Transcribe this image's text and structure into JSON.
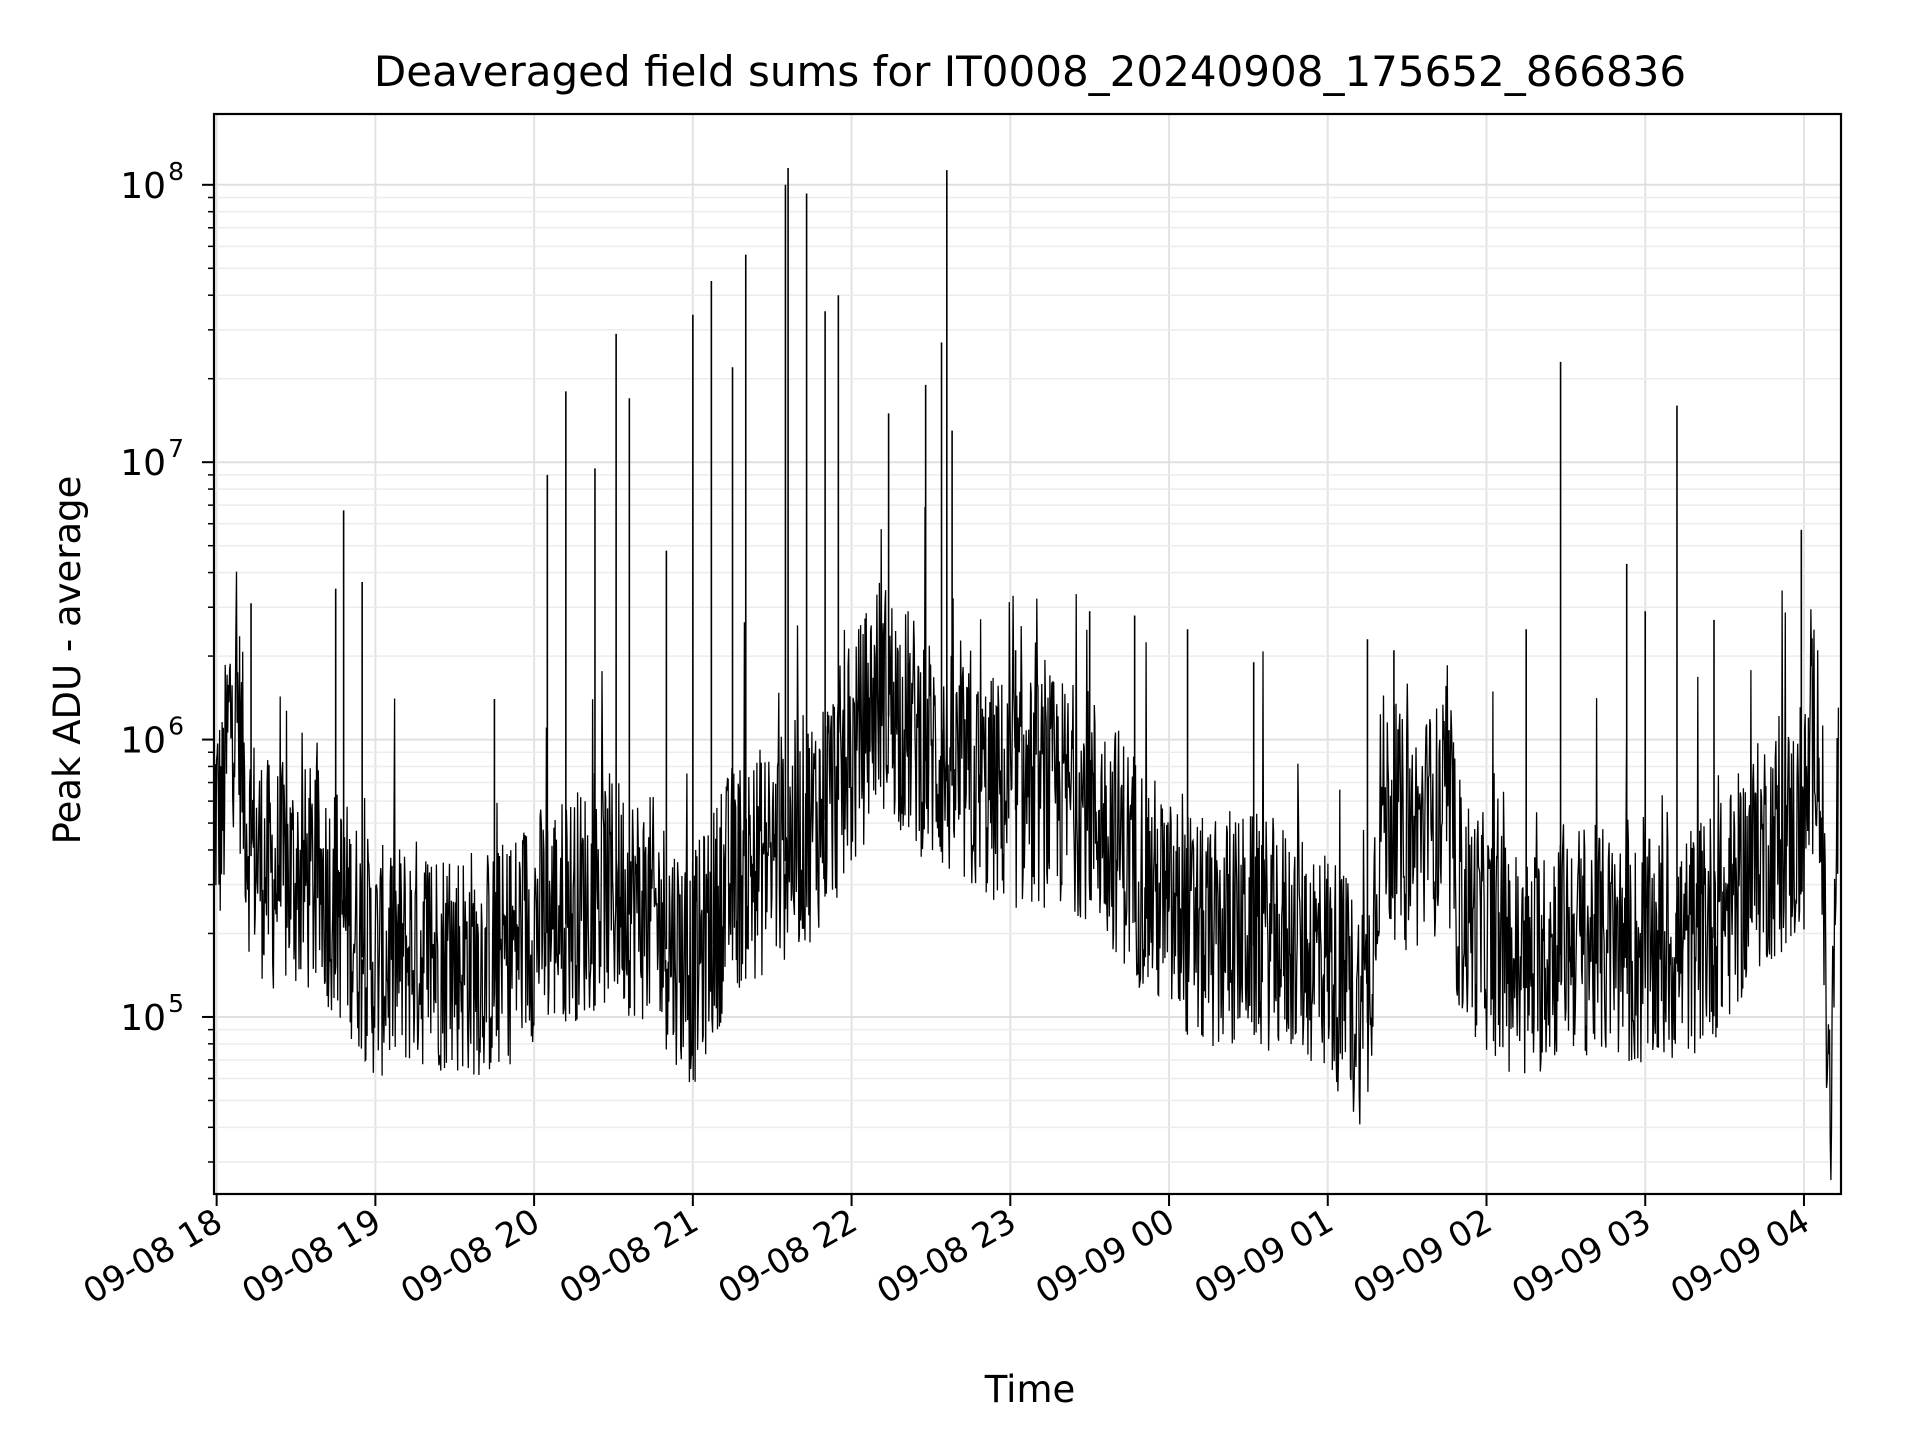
{
  "chart_data": {
    "type": "line",
    "title": "Deaveraged field sums for IT0008_20240908_175652_866836",
    "xlabel": "Time",
    "ylabel": "Peak ADU - average",
    "yscale": "log",
    "ylim": [
      23000,
      180000000
    ],
    "xlim": [
      "2024-09-08 17:59:00",
      "2024-09-09 04:14:00"
    ],
    "xticks": [
      "2024-09-08 18:00",
      "2024-09-08 19:00",
      "2024-09-08 20:00",
      "2024-09-08 21:00",
      "2024-09-08 22:00",
      "2024-09-08 23:00",
      "2024-09-09 00:00",
      "2024-09-09 01:00",
      "2024-09-09 02:00",
      "2024-09-09 03:00",
      "2024-09-09 04:00"
    ],
    "xtick_labels": [
      "09-08 18",
      "09-08 19",
      "09-08 20",
      "09-08 21",
      "09-08 22",
      "09-08 23",
      "09-09 00",
      "09-09 01",
      "09-09 02",
      "09-09 03",
      "09-09 04"
    ],
    "ytick_values": [
      100000,
      1000000,
      10000000,
      100000000
    ],
    "ytick_labels": [
      {
        "base": "10",
        "exp": "5"
      },
      {
        "base": "10",
        "exp": "6"
      },
      {
        "base": "10",
        "exp": "7"
      },
      {
        "base": "10",
        "exp": "8"
      }
    ],
    "grid": true,
    "line_color": "#000000",
    "series": [
      {
        "x": [
          "2024-09-08 17:59",
          "2024-09-08 18:02",
          "2024-09-08 18:05",
          "2024-09-08 18:08",
          "2024-09-08 18:12",
          "2024-09-08 18:20",
          "2024-09-08 18:30",
          "2024-09-08 18:40",
          "2024-09-08 18:50",
          "2024-09-08 19:00",
          "2024-09-08 19:15",
          "2024-09-08 19:30",
          "2024-09-08 19:45",
          "2024-09-08 20:00",
          "2024-09-08 20:15",
          "2024-09-08 20:30",
          "2024-09-08 20:45",
          "2024-09-08 21:00",
          "2024-09-08 21:15",
          "2024-09-08 21:30",
          "2024-09-08 21:45",
          "2024-09-08 22:00",
          "2024-09-08 22:10",
          "2024-09-08 22:20",
          "2024-09-08 22:30",
          "2024-09-08 22:45",
          "2024-09-08 23:00",
          "2024-09-08 23:15",
          "2024-09-08 23:30",
          "2024-09-08 23:45",
          "2024-09-09 00:00",
          "2024-09-09 00:15",
          "2024-09-09 00:30",
          "2024-09-09 00:45",
          "2024-09-09 01:00",
          "2024-09-09 01:10",
          "2024-09-09 01:15",
          "2024-09-09 01:20",
          "2024-09-09 01:30",
          "2024-09-09 01:45",
          "2024-09-09 01:50",
          "2024-09-09 02:00",
          "2024-09-09 02:15",
          "2024-09-09 02:30",
          "2024-09-09 02:45",
          "2024-09-09 03:00",
          "2024-09-09 03:15",
          "2024-09-09 03:30",
          "2024-09-09 03:45",
          "2024-09-09 04:00",
          "2024-09-09 04:05",
          "2024-09-09 04:10",
          "2024-09-09 04:13"
        ],
        "y": [
          650000,
          550000,
          1400000,
          1400000,
          500000,
          350000,
          350000,
          330000,
          250000,
          170000,
          190000,
          180000,
          170000,
          240000,
          280000,
          320000,
          260000,
          160000,
          350000,
          420000,
          550000,
          900000,
          1700000,
          1300000,
          1000000,
          750000,
          700000,
          720000,
          650000,
          420000,
          260000,
          210000,
          230000,
          210000,
          180000,
          120000,
          120000,
          650000,
          480000,
          600000,
          280000,
          220000,
          160000,
          220000,
          200000,
          180000,
          200000,
          260000,
          450000,
          520000,
          1500000,
          40000,
          900000
        ]
      }
    ],
    "spikes": [
      {
        "x": "2024-09-08 18:13",
        "y": 3100000
      },
      {
        "x": "2024-09-08 18:45",
        "y": 3500000
      },
      {
        "x": "2024-09-08 18:48",
        "y": 6700000
      },
      {
        "x": "2024-09-08 18:55",
        "y": 3700000
      },
      {
        "x": "2024-09-08 19:45",
        "y": 1400000
      },
      {
        "x": "2024-09-08 20:05",
        "y": 9000000
      },
      {
        "x": "2024-09-08 20:12",
        "y": 18000000
      },
      {
        "x": "2024-09-08 20:23",
        "y": 9500000
      },
      {
        "x": "2024-09-08 20:31",
        "y": 29000000
      },
      {
        "x": "2024-09-08 20:36",
        "y": 17000000
      },
      {
        "x": "2024-09-08 20:50",
        "y": 4800000
      },
      {
        "x": "2024-09-08 21:00",
        "y": 34000000
      },
      {
        "x": "2024-09-08 21:07",
        "y": 45000000
      },
      {
        "x": "2024-09-08 21:15",
        "y": 22000000
      },
      {
        "x": "2024-09-08 21:20",
        "y": 56000000
      },
      {
        "x": "2024-09-08 21:35",
        "y": 100000000
      },
      {
        "x": "2024-09-08 21:36",
        "y": 115000000
      },
      {
        "x": "2024-09-08 21:43",
        "y": 93000000
      },
      {
        "x": "2024-09-08 21:50",
        "y": 35000000
      },
      {
        "x": "2024-09-08 21:55",
        "y": 40000000
      },
      {
        "x": "2024-09-08 22:14",
        "y": 15000000
      },
      {
        "x": "2024-09-08 22:28",
        "y": 19000000
      },
      {
        "x": "2024-09-08 22:34",
        "y": 27000000
      },
      {
        "x": "2024-09-08 22:36",
        "y": 113000000
      },
      {
        "x": "2024-09-08 22:38",
        "y": 13000000
      },
      {
        "x": "2024-09-08 23:02",
        "y": 2100000
      },
      {
        "x": "2024-09-08 23:30",
        "y": 2900000
      },
      {
        "x": "2024-09-08 23:47",
        "y": 2800000
      },
      {
        "x": "2024-09-09 00:07",
        "y": 2500000
      },
      {
        "x": "2024-09-09 00:32",
        "y": 1900000
      },
      {
        "x": "2024-09-09 01:15",
        "y": 2300000
      },
      {
        "x": "2024-09-09 01:25",
        "y": 2100000
      },
      {
        "x": "2024-09-09 02:15",
        "y": 2500000
      },
      {
        "x": "2024-09-09 02:28",
        "y": 23000000
      },
      {
        "x": "2024-09-09 02:53",
        "y": 4300000
      },
      {
        "x": "2024-09-09 03:00",
        "y": 2900000
      },
      {
        "x": "2024-09-09 03:12",
        "y": 16000000
      },
      {
        "x": "2024-09-09 03:26",
        "y": 2700000
      },
      {
        "x": "2024-09-09 03:59",
        "y": 5700000
      }
    ]
  }
}
